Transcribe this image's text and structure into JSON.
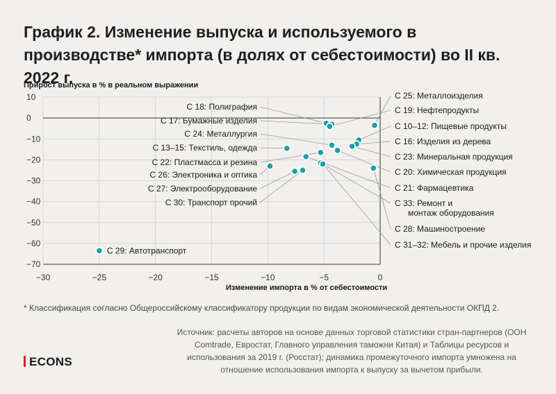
{
  "title": "График 2. Изменение выпуска и используемого в производстве* импорта (в долях от себестоимости) во II кв. 2022 г.",
  "footnote": "* Классификация согласно Общероссийскому классификатору продукции по видам экономической деятельности ОКПД 2.",
  "source": "Источник: расчеты авторов на основе данных торговой статистики стран-партнеров (ООН Comtrade, Евростат, Главного управления таможни Китая) и Таблицы ресурсов и использования за 2019 г. (Росстат); динамика промежуточного импорта умножена на отношение использования импорта к выпуску за вычетом прибыли.",
  "brand": "ECONS",
  "colors": {
    "point": "#1f9ea6",
    "leader": "#9a9a9a",
    "grid": "#d6d6d6",
    "axis": "#333333"
  },
  "chart_data": {
    "type": "scatter",
    "xlabel": "Изменение импорта в % от себестоимости",
    "ylabel": "Прирост выпуска в % в реальном выражении",
    "xlim": [
      -30,
      0
    ],
    "ylim": [
      -70,
      10
    ],
    "xticks": [
      -30,
      -25,
      -20,
      -15,
      -10,
      -5,
      0
    ],
    "yticks": [
      10,
      0,
      -10,
      -20,
      -30,
      -40,
      -50,
      -60,
      -70
    ],
    "xtick_labels": [
      "−30",
      "−25",
      "−20",
      "−15",
      "−10",
      "−5",
      "0"
    ],
    "ytick_labels": [
      "10",
      "0",
      "−10",
      "−20",
      "−30",
      "−40",
      "−50",
      "−60",
      "−70"
    ],
    "grid": true,
    "points": [
      {
        "label": "С 18: Полиграфия",
        "x": -4.8,
        "y": -2.5
      },
      {
        "label": "С 17: Бумажные изделия",
        "x": -4.3,
        "y": -3.0
      },
      {
        "label": "С 24: Металлургия",
        "x": -4.3,
        "y": -13.0
      },
      {
        "label": "С 13–15: Текстиль, одежда",
        "x": -8.3,
        "y": -14.5
      },
      {
        "label": "С 22: Пластмасса и резина",
        "x": -5.3,
        "y": -16.5
      },
      {
        "label": "С 26: Электроника и оптика",
        "x": -9.8,
        "y": -23.0
      },
      {
        "label": "С 27: Электрооборудование",
        "x": -7.6,
        "y": -25.5
      },
      {
        "label": "С 30: Транспорт прочий",
        "x": -6.9,
        "y": -25.0
      },
      {
        "label": "С 25: Металлоизделия",
        "x": -0.5,
        "y": -3.5
      },
      {
        "label": "С 19: Нефтепродукты",
        "x": -4.5,
        "y": -4.0
      },
      {
        "label": "С 10–12: Пищевые продукты",
        "x": -1.9,
        "y": -10.5
      },
      {
        "label": "С 16: Изделия из дерева",
        "x": -2.1,
        "y": -12.5
      },
      {
        "label": "С 23: Минеральная продукция",
        "x": -2.5,
        "y": -13.5
      },
      {
        "label": "С 20: Химическая продукция",
        "x": -3.8,
        "y": -15.5
      },
      {
        "label": "С 21: Фармацевтика",
        "x": -6.6,
        "y": -18.5
      },
      {
        "label": "С 33: Ремонт и монтаж оборудования",
        "x": -5.3,
        "y": -21.5
      },
      {
        "label": "С 28: Машиностроение",
        "x": -0.6,
        "y": -24.0
      },
      {
        "label": "С 31–32: Мебель и прочие изделия",
        "x": -5.1,
        "y": -22.0
      },
      {
        "label": "С 29: Автотранспорт",
        "x": -25.0,
        "y": -63.5
      }
    ]
  }
}
